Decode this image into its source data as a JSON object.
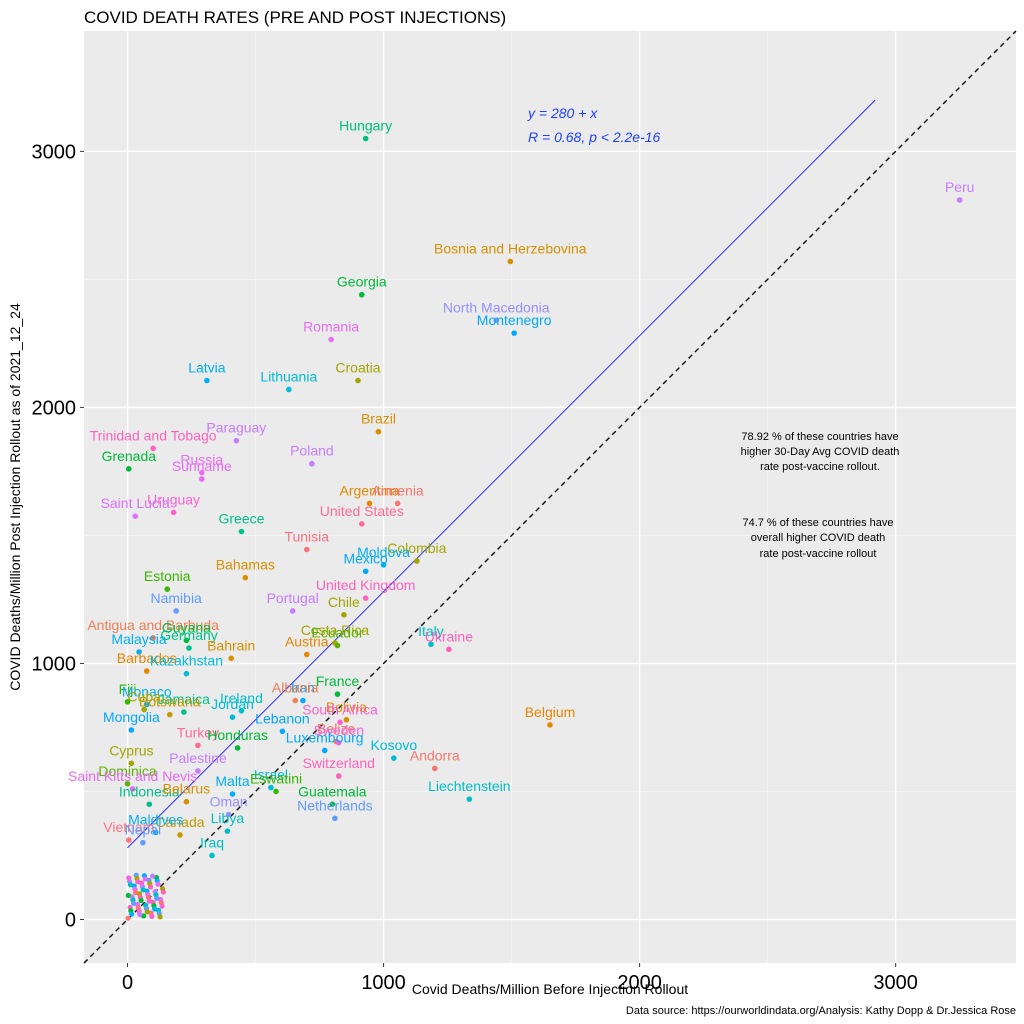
{
  "chart_data": {
    "type": "scatter",
    "title": "COVID DEATH RATES (PRE AND POST INJECTIONS)",
    "xlabel": "Covid Deaths/Million Before Injection Rollout",
    "ylabel": "COVID Deaths/Million Post Injection Rollout as of 2021_12_24",
    "xlim": [
      -170,
      3470
    ],
    "ylim": [
      -170,
      3470
    ],
    "xticks": [
      0,
      1000,
      2000,
      3000
    ],
    "yticks": [
      0,
      1000,
      2000,
      3000
    ],
    "regression": {
      "intercept": 280,
      "slope": 1,
      "x_end": 2920
    },
    "annotations": {
      "equation": "y = 280 + x",
      "stats": "R = 0.68, p < 2.2e-16",
      "note1": [
        "78.92 % of these countries have",
        "higher 30-Day Avg COVID death",
        "rate post-vaccine rollout."
      ],
      "note2": [
        "74.7 % of these countries have",
        "overall higher COVID death",
        "rate post-vaccine rollout"
      ]
    },
    "source": "Data source: https://ourworldindata.org/Analysis: Kathy Dopp & Dr.Jessica Rose",
    "points": [
      {
        "name": "Hungary",
        "x": 930,
        "y": 3050,
        "color": "#00bf7d"
      },
      {
        "name": "Peru",
        "x": 3250,
        "y": 2810,
        "color": "#c77cff"
      },
      {
        "name": "Bosnia and Herzebovina",
        "x": 1495,
        "y": 2570,
        "color": "#d89000"
      },
      {
        "name": "Georgia",
        "x": 915,
        "y": 2440,
        "color": "#00ba38"
      },
      {
        "name": "North Macedonia",
        "x": 1440,
        "y": 2340,
        "color": "#9590ff"
      },
      {
        "name": "Montenegro",
        "x": 1510,
        "y": 2290,
        "color": "#00a9ff"
      },
      {
        "name": "Romania",
        "x": 795,
        "y": 2265,
        "color": "#e76bf3"
      },
      {
        "name": "Croatia",
        "x": 900,
        "y": 2105,
        "color": "#a3a500"
      },
      {
        "name": "Latvia",
        "x": 310,
        "y": 2105,
        "color": "#00b0f6"
      },
      {
        "name": "Lithuania",
        "x": 630,
        "y": 2070,
        "color": "#00bcd8"
      },
      {
        "name": "Brazil",
        "x": 980,
        "y": 1905,
        "color": "#d89000"
      },
      {
        "name": "Paraguay",
        "x": 425,
        "y": 1870,
        "color": "#c77cff"
      },
      {
        "name": "Trinidad and Tobago",
        "x": 100,
        "y": 1840,
        "color": "#ff62bc"
      },
      {
        "name": "Poland",
        "x": 720,
        "y": 1780,
        "color": "#c77cff"
      },
      {
        "name": "Grenada",
        "x": 5,
        "y": 1760,
        "color": "#00ba38"
      },
      {
        "name": "Russia",
        "x": 290,
        "y": 1745,
        "color": "#e76bf3"
      },
      {
        "name": "Suriname",
        "x": 290,
        "y": 1720,
        "color": "#e76bf3"
      },
      {
        "name": "Argentina",
        "x": 945,
        "y": 1625,
        "color": "#e58700"
      },
      {
        "name": "Armenia",
        "x": 1055,
        "y": 1625,
        "color": "#f8766d"
      },
      {
        "name": "Uruguay",
        "x": 180,
        "y": 1590,
        "color": "#fd61d1"
      },
      {
        "name": "Saint Lucia",
        "x": 30,
        "y": 1575,
        "color": "#dc71fa"
      },
      {
        "name": "United States",
        "x": 915,
        "y": 1545,
        "color": "#ff6a98"
      },
      {
        "name": "Greece",
        "x": 445,
        "y": 1515,
        "color": "#00c08b"
      },
      {
        "name": "Tunisia",
        "x": 700,
        "y": 1445,
        "color": "#fc717f"
      },
      {
        "name": "Colombia",
        "x": 1130,
        "y": 1400,
        "color": "#a3a500"
      },
      {
        "name": "Moldova",
        "x": 1000,
        "y": 1385,
        "color": "#00b0f6"
      },
      {
        "name": "Bahamas",
        "x": 460,
        "y": 1335,
        "color": "#d89000"
      },
      {
        "name": "Mexico",
        "x": 930,
        "y": 1360,
        "color": "#00a9ff"
      },
      {
        "name": "Estonia",
        "x": 155,
        "y": 1290,
        "color": "#39b600"
      },
      {
        "name": "United Kingdom",
        "x": 930,
        "y": 1255,
        "color": "#ff62bc"
      },
      {
        "name": "Chile",
        "x": 845,
        "y": 1190,
        "color": "#a3a500"
      },
      {
        "name": "Portugal",
        "x": 645,
        "y": 1205,
        "color": "#c77cff"
      },
      {
        "name": "Namibia",
        "x": 190,
        "y": 1205,
        "color": "#619cff"
      },
      {
        "name": "Antigua and Barbuda",
        "x": 100,
        "y": 1100,
        "color": "#f07e56"
      },
      {
        "name": "Guyana",
        "x": 230,
        "y": 1090,
        "color": "#00ba38"
      },
      {
        "name": "Costa Rica",
        "x": 810,
        "y": 1080,
        "color": "#a3a500"
      },
      {
        "name": "Italy",
        "x": 1185,
        "y": 1075,
        "color": "#00bfc4"
      },
      {
        "name": "Ukraine",
        "x": 1255,
        "y": 1055,
        "color": "#ff62bc"
      },
      {
        "name": "Malaysia",
        "x": 45,
        "y": 1045,
        "color": "#00b0f6"
      },
      {
        "name": "Germany",
        "x": 240,
        "y": 1060,
        "color": "#00c08b"
      },
      {
        "name": "Ecuador",
        "x": 820,
        "y": 1070,
        "color": "#5bb300"
      },
      {
        "name": "Austria",
        "x": 700,
        "y": 1035,
        "color": "#e58700"
      },
      {
        "name": "Bahrain",
        "x": 405,
        "y": 1020,
        "color": "#d89000"
      },
      {
        "name": "Barbados",
        "x": 75,
        "y": 970,
        "color": "#e58700"
      },
      {
        "name": "Kazakhstan",
        "x": 230,
        "y": 960,
        "color": "#00bcd8"
      },
      {
        "name": "France",
        "x": 820,
        "y": 880,
        "color": "#00ba38"
      },
      {
        "name": "Iran",
        "x": 685,
        "y": 855,
        "color": "#00a9ff"
      },
      {
        "name": "Albania",
        "x": 655,
        "y": 855,
        "color": "#f07e56"
      },
      {
        "name": "Belgium",
        "x": 1650,
        "y": 760,
        "color": "#e58700"
      },
      {
        "name": "Fiji",
        "x": 0,
        "y": 850,
        "color": "#39b600"
      },
      {
        "name": "Monaco",
        "x": 75,
        "y": 840,
        "color": "#00b0f6"
      },
      {
        "name": "Jamaica",
        "x": 220,
        "y": 810,
        "color": "#00c08b"
      },
      {
        "name": "Ireland",
        "x": 445,
        "y": 815,
        "color": "#00bfc4"
      },
      {
        "name": "Cuba",
        "x": 65,
        "y": 820,
        "color": "#a3a500"
      },
      {
        "name": "Botswana",
        "x": 165,
        "y": 800,
        "color": "#c49a00"
      },
      {
        "name": "Jordan",
        "x": 410,
        "y": 790,
        "color": "#00bcd8"
      },
      {
        "name": "Bolivia",
        "x": 855,
        "y": 780,
        "color": "#d89000"
      },
      {
        "name": "South Africa",
        "x": 830,
        "y": 770,
        "color": "#fd61d1"
      },
      {
        "name": "Lebanon",
        "x": 605,
        "y": 735,
        "color": "#00a9ff"
      },
      {
        "name": "Mongolia",
        "x": 15,
        "y": 740,
        "color": "#00a9ff"
      },
      {
        "name": "Turkey",
        "x": 275,
        "y": 680,
        "color": "#ff6c91"
      },
      {
        "name": "Belize",
        "x": 815,
        "y": 695,
        "color": "#f07e56"
      },
      {
        "name": "Sweden",
        "x": 825,
        "y": 690,
        "color": "#f564e3"
      },
      {
        "name": "Honduras",
        "x": 430,
        "y": 670,
        "color": "#00ba38"
      },
      {
        "name": "Palestine",
        "x": 275,
        "y": 580,
        "color": "#c77cff"
      },
      {
        "name": "Cyprus",
        "x": 15,
        "y": 610,
        "color": "#a3a500"
      },
      {
        "name": "Luxembourg",
        "x": 770,
        "y": 660,
        "color": "#00a9ff"
      },
      {
        "name": "Kosovo",
        "x": 1040,
        "y": 630,
        "color": "#00bcd8"
      },
      {
        "name": "Dominica",
        "x": 0,
        "y": 530,
        "color": "#5bb300"
      },
      {
        "name": "Saint Kitts and Nevis",
        "x": 20,
        "y": 510,
        "color": "#e76bf3"
      },
      {
        "name": "Switzerland",
        "x": 825,
        "y": 560,
        "color": "#ff62bc"
      },
      {
        "name": "Andorra",
        "x": 1200,
        "y": 590,
        "color": "#f8766d"
      },
      {
        "name": "Israel",
        "x": 560,
        "y": 515,
        "color": "#00bcd8"
      },
      {
        "name": "Eswatini",
        "x": 580,
        "y": 500,
        "color": "#39b600"
      },
      {
        "name": "Indonesia",
        "x": 85,
        "y": 450,
        "color": "#00c08b"
      },
      {
        "name": "Belarus",
        "x": 230,
        "y": 460,
        "color": "#d89000"
      },
      {
        "name": "Malta",
        "x": 410,
        "y": 490,
        "color": "#00b0f6"
      },
      {
        "name": "Liechtenstein",
        "x": 1335,
        "y": 470,
        "color": "#00bfc4"
      },
      {
        "name": "Guatemala",
        "x": 800,
        "y": 450,
        "color": "#00ba38"
      },
      {
        "name": "Oman",
        "x": 395,
        "y": 410,
        "color": "#9590ff"
      },
      {
        "name": "Netherlands",
        "x": 810,
        "y": 395,
        "color": "#619cff"
      },
      {
        "name": "Canada",
        "x": 205,
        "y": 330,
        "color": "#c49a00"
      },
      {
        "name": "Vietnam",
        "x": 5,
        "y": 310,
        "color": "#fc717f"
      },
      {
        "name": "Maldives",
        "x": 110,
        "y": 340,
        "color": "#00b0f6"
      },
      {
        "name": "Libya",
        "x": 390,
        "y": 345,
        "color": "#00bfc4"
      },
      {
        "name": "Nepal",
        "x": 60,
        "y": 300,
        "color": "#619cff"
      },
      {
        "name": "Iraq",
        "x": 330,
        "y": 250,
        "color": "#00bfc4"
      }
    ]
  }
}
